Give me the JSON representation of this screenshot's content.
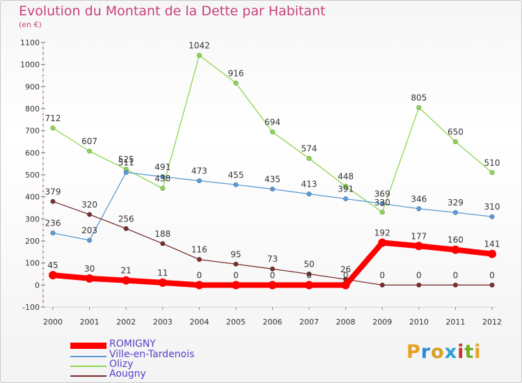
{
  "title": "Evolution du Montant de la Dette par Habitant",
  "subtitle": "(en €)",
  "brand": {
    "letters": [
      "P",
      "r",
      "o",
      "x",
      "i",
      "t",
      "i"
    ],
    "colors": [
      "#e8a020",
      "#2a8ad8",
      "#d8a020",
      "#2aa0d8",
      "#c83030",
      "#70b020",
      "#e8a020"
    ]
  },
  "chart_data": {
    "type": "line",
    "x": [
      2000,
      2001,
      2002,
      2003,
      2004,
      2005,
      2006,
      2007,
      2008,
      2009,
      2010,
      2011,
      2012
    ],
    "ylim": [
      -100,
      1100
    ],
    "yticks": [
      -100,
      0,
      100,
      200,
      300,
      400,
      500,
      600,
      700,
      800,
      900,
      1000,
      1100
    ],
    "grid": false,
    "legend_position": "bottom-left",
    "series": [
      {
        "name": "ROMIGNY",
        "color": "#ff0000",
        "values": [
          45,
          30,
          21,
          11,
          0,
          0,
          0,
          0,
          0,
          192,
          177,
          160,
          141
        ],
        "labels": [
          "45",
          "30",
          "21",
          "11",
          "0",
          "0",
          "0",
          "0",
          "0",
          "192",
          "177",
          "160",
          "141"
        ]
      },
      {
        "name": "Ville-en-Tardenois",
        "color": "#5b9bd5",
        "values": [
          236,
          203,
          511,
          491,
          473,
          455,
          435,
          413,
          391,
          369,
          346,
          329,
          310
        ],
        "labels": [
          "236",
          "203",
          "511",
          "491",
          "473",
          "455",
          "435",
          "413",
          "391",
          "369",
          "346",
          "329",
          "310"
        ]
      },
      {
        "name": "Olizy",
        "color": "#8cd650",
        "values": [
          712,
          607,
          525,
          438,
          1042,
          916,
          694,
          574,
          448,
          330,
          805,
          650,
          510
        ],
        "labels": [
          "712",
          "607",
          "525",
          "438",
          "1042",
          "916",
          "694",
          "574",
          "448",
          "330",
          "805",
          "650",
          "510"
        ]
      },
      {
        "name": "Aougny",
        "color": "#7a2e2e",
        "values": [
          379,
          320,
          256,
          188,
          116,
          95,
          73,
          50,
          26,
          0,
          0,
          0,
          0
        ],
        "labels": [
          "379",
          "320",
          "256",
          "188",
          "116",
          "95",
          "73",
          "50",
          "26",
          "0",
          "0",
          "0",
          "0"
        ]
      }
    ]
  }
}
